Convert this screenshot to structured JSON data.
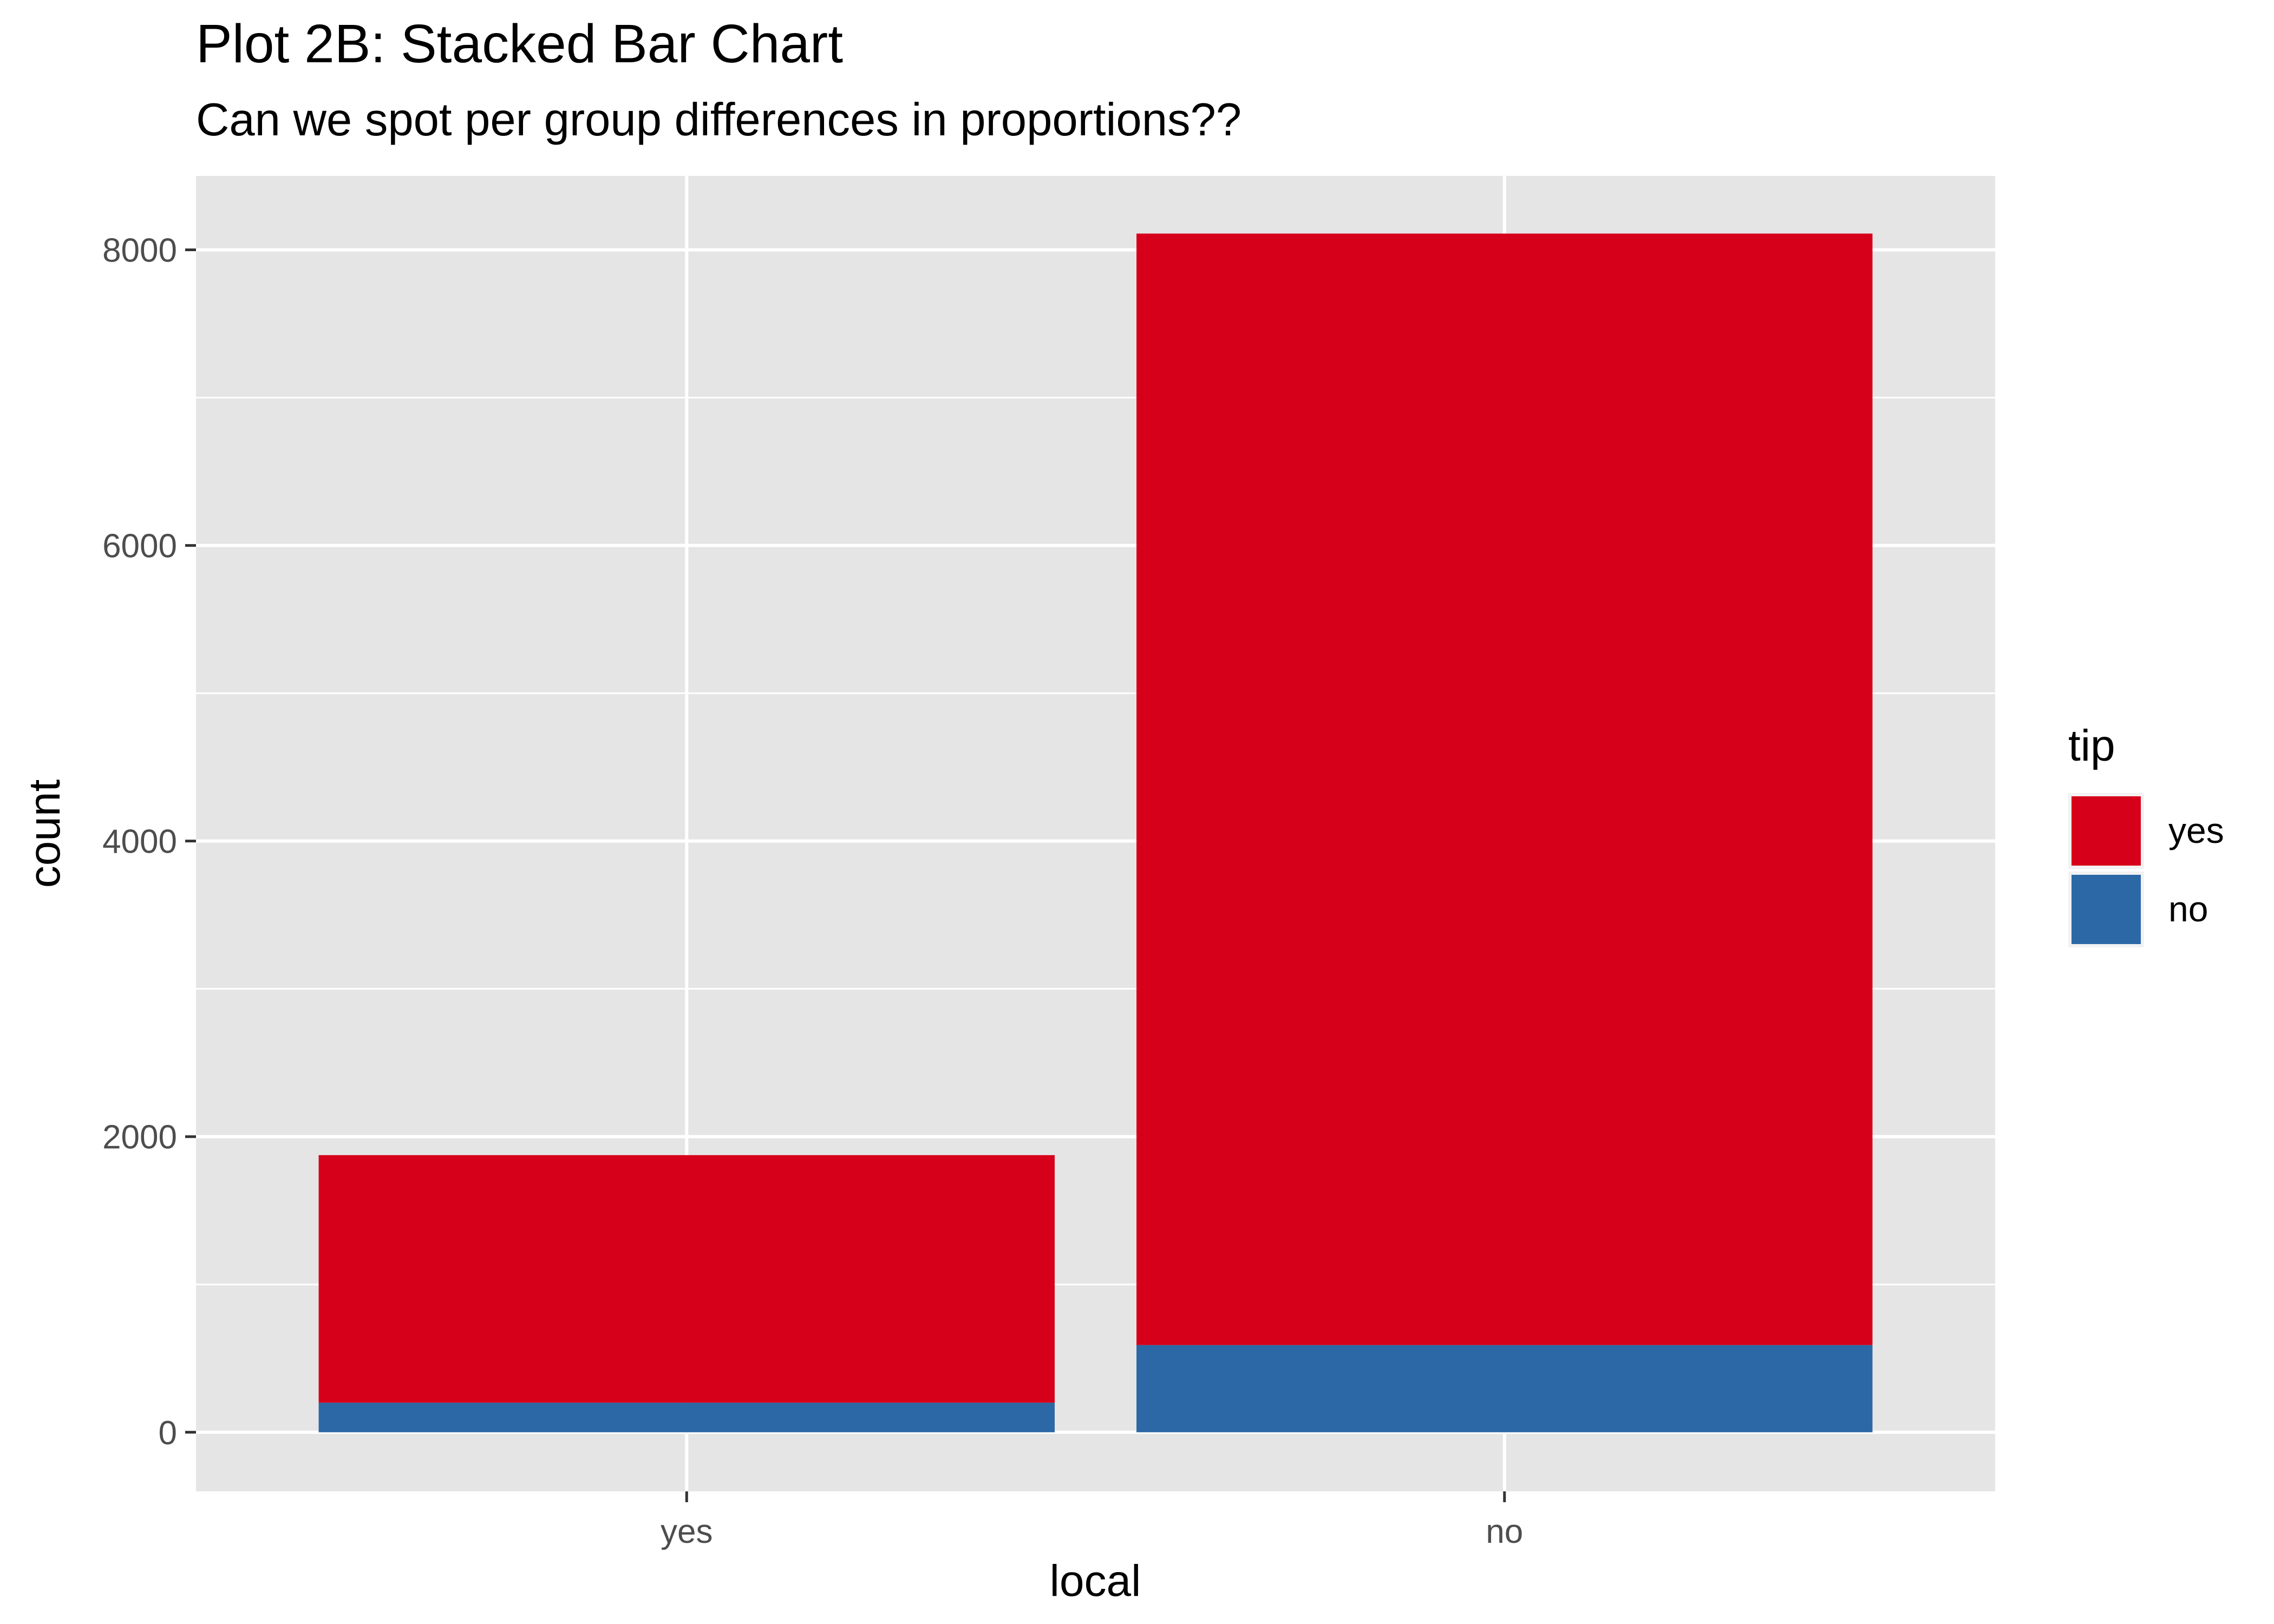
{
  "chart_data": {
    "type": "bar",
    "stacked": true,
    "title": "Plot 2B: Stacked Bar Chart",
    "subtitle": "Can we spot per group differences in proportions??",
    "xlabel": "local",
    "ylabel": "count",
    "categories": [
      "yes",
      "no"
    ],
    "series": [
      {
        "name": "no",
        "values": [
          200,
          590
        ]
      },
      {
        "name": "yes",
        "values": [
          1675,
          7520
        ]
      }
    ],
    "ylim": [
      -400,
      8500
    ],
    "yticks": [
      "0",
      "2000",
      "4000",
      "6000",
      "8000"
    ],
    "ytick_values": [
      0,
      2000,
      4000,
      6000,
      8000
    ],
    "minor_yticks": [
      1000,
      3000,
      5000,
      7000
    ],
    "grid": true,
    "legend": {
      "title": "tip",
      "placement": "right",
      "entries": [
        "yes",
        "no"
      ]
    },
    "colors": {
      "yes": "#d7001a",
      "no": "#2c68a6",
      "panel": "#e5e5e5",
      "grid": "#ffffff",
      "tick_text": "#4d4d4d"
    }
  }
}
